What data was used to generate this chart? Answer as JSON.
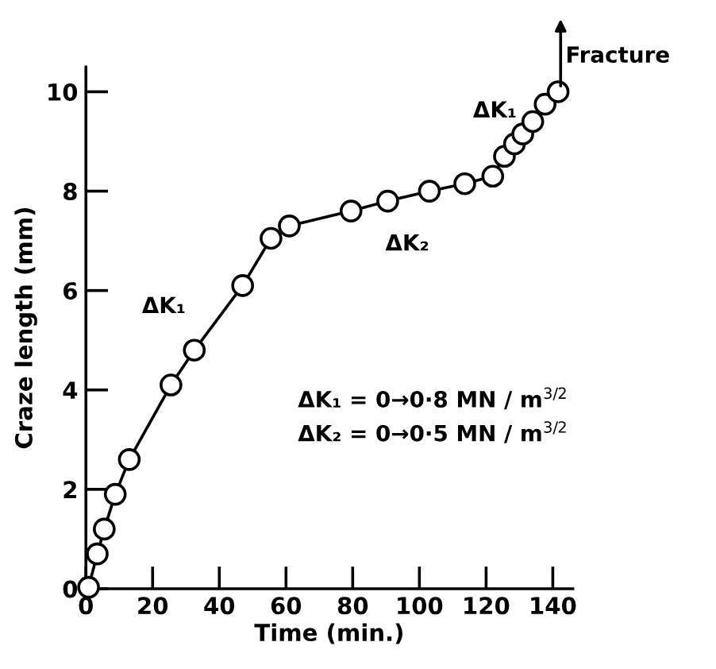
{
  "chart_data": {
    "type": "line",
    "xlabel": "Time (min.)",
    "ylabel": "Craze length (mm)",
    "x": [
      0.8,
      3.4,
      5.5,
      8.8,
      13,
      25.5,
      32.5,
      47,
      55.5,
      61,
      79.5,
      90.5,
      103,
      113.6,
      122,
      125.5,
      128.5,
      131,
      134,
      137.7,
      141.6
    ],
    "values": [
      0.03,
      0.7,
      1.2,
      1.9,
      2.6,
      4.1,
      4.8,
      6.1,
      7.05,
      7.3,
      7.6,
      7.8,
      8.0,
      8.15,
      8.3,
      8.7,
      8.95,
      9.15,
      9.4,
      9.75,
      10.0
    ],
    "color": "#000000",
    "marker": "circle",
    "line_style": "solid",
    "grid": false,
    "legend": false,
    "xlim": [
      0,
      146
    ],
    "ylim": [
      0,
      10.5
    ],
    "xticks": [
      0,
      20,
      40,
      60,
      80,
      100,
      120,
      140
    ],
    "yticks": [
      0,
      2,
      4,
      6,
      8,
      10
    ],
    "annotations": [
      "ΔK₁",
      "ΔK₂",
      "ΔK₁",
      "Fracture",
      "ΔK₁ = 0→0·8 MN / m$^{3/2}$",
      "ΔK₂ = 0→0·5 MN / m$^{3/2}$"
    ]
  }
}
